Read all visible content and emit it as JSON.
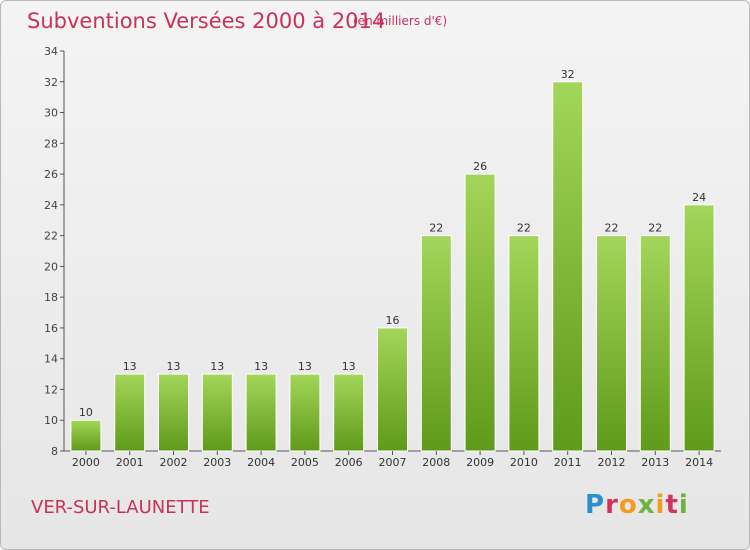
{
  "header": {
    "title": "Subventions Versées 2000 à 2014",
    "subtitle": "(en milliers d'€)"
  },
  "footer": {
    "commune": "VER-SUR-LAUNETTE",
    "logo_text": "Proxiti"
  },
  "colors": {
    "title": "#c8325a",
    "bar_top": "#a3d65a",
    "bar_bottom": "#5f9a1a",
    "axis": "#555555"
  },
  "chart_data": {
    "type": "bar",
    "title": "Subventions Versées 2000 à 2014",
    "subtitle": "(en milliers d'€)",
    "categories": [
      "2000",
      "2001",
      "2002",
      "2003",
      "2004",
      "2005",
      "2006",
      "2007",
      "2008",
      "2009",
      "2010",
      "2011",
      "2012",
      "2013",
      "2014"
    ],
    "values": [
      10,
      13,
      13,
      13,
      13,
      13,
      13,
      16,
      22,
      26,
      22,
      32,
      22,
      22,
      24
    ],
    "ylim": [
      8,
      34
    ],
    "yticks": [
      8,
      10,
      12,
      14,
      16,
      18,
      20,
      22,
      24,
      26,
      28,
      30,
      32,
      34
    ],
    "grid": false,
    "data_labels": true
  }
}
